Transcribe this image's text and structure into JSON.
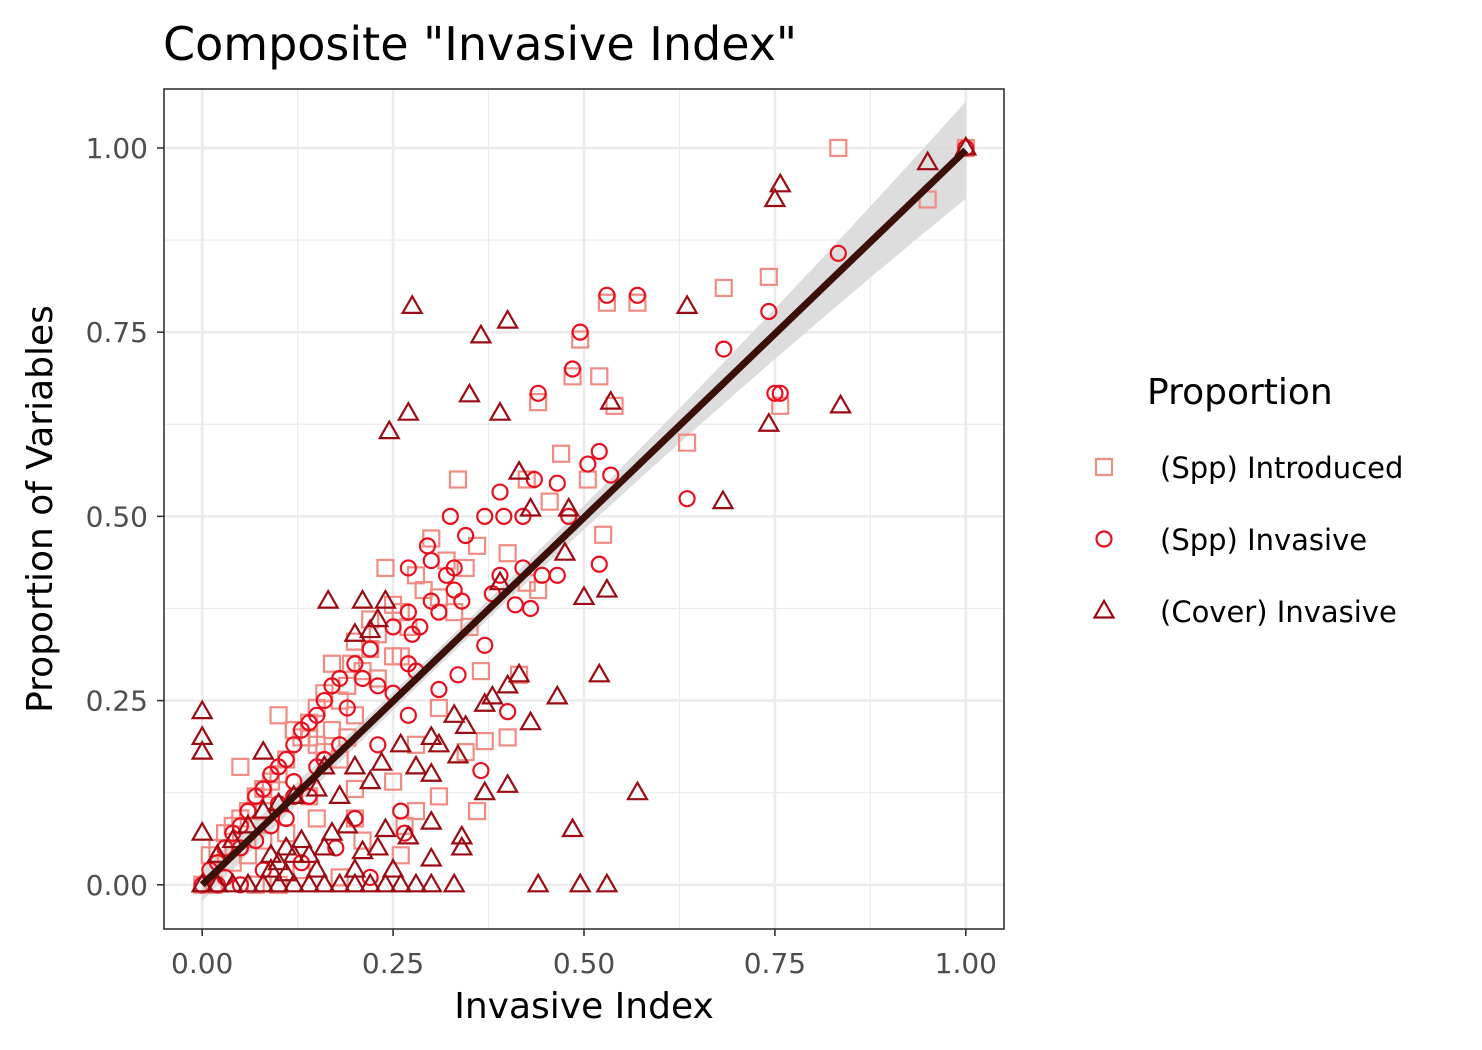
{
  "chart_data": {
    "type": "scatter",
    "title": "Composite \"Invasive Index\"",
    "xlabel": "Invasive Index",
    "ylabel": "Proportion of Variables",
    "xlim": [
      -0.05,
      1.05
    ],
    "ylim": [
      -0.06,
      1.08
    ],
    "x_ticks": [
      "0.00",
      "0.25",
      "0.50",
      "0.75",
      "1.00"
    ],
    "y_ticks": [
      "0.00",
      "0.25",
      "0.50",
      "0.75",
      "1.00"
    ],
    "x_tick_values": [
      0,
      0.25,
      0.5,
      0.75,
      1.0
    ],
    "y_tick_values": [
      0,
      0.25,
      0.5,
      0.75,
      1.0
    ],
    "grid": true,
    "legend_title": "Proportion",
    "legend_position": "right",
    "fit_line": {
      "x": [
        0,
        1
      ],
      "y": [
        0,
        0.997
      ],
      "color": "#3b1008",
      "band_color": "#d9d9d9"
    },
    "series": [
      {
        "name": "(Spp) Introduced",
        "marker": "square",
        "color": "#f08c84",
        "points": [
          [
            0.833,
            1.0
          ],
          [
            0.95,
            0.93
          ],
          [
            1.0,
            1.0
          ],
          [
            0.742,
            0.825
          ],
          [
            0.683,
            0.81
          ],
          [
            0.53,
            0.79
          ],
          [
            0.57,
            0.79
          ],
          [
            0.495,
            0.74
          ],
          [
            0.485,
            0.69
          ],
          [
            0.52,
            0.69
          ],
          [
            0.44,
            0.655
          ],
          [
            0.54,
            0.65
          ],
          [
            0.757,
            0.65
          ],
          [
            0.635,
            0.6
          ],
          [
            0.47,
            0.585
          ],
          [
            0.505,
            0.55
          ],
          [
            0.335,
            0.55
          ],
          [
            0.425,
            0.55
          ],
          [
            0.455,
            0.52
          ],
          [
            0.525,
            0.475
          ],
          [
            0.4,
            0.45
          ],
          [
            0.3,
            0.47
          ],
          [
            0.36,
            0.46
          ],
          [
            0.32,
            0.44
          ],
          [
            0.28,
            0.42
          ],
          [
            0.24,
            0.43
          ],
          [
            0.345,
            0.43
          ],
          [
            0.425,
            0.41
          ],
          [
            0.44,
            0.4
          ],
          [
            0.29,
            0.4
          ],
          [
            0.31,
            0.39
          ],
          [
            0.25,
            0.38
          ],
          [
            0.26,
            0.37
          ],
          [
            0.27,
            0.35
          ],
          [
            0.23,
            0.34
          ],
          [
            0.2,
            0.33
          ],
          [
            0.22,
            0.32
          ],
          [
            0.25,
            0.31
          ],
          [
            0.195,
            0.3
          ],
          [
            0.17,
            0.3
          ],
          [
            0.21,
            0.29
          ],
          [
            0.365,
            0.29
          ],
          [
            0.415,
            0.285
          ],
          [
            0.19,
            0.27
          ],
          [
            0.16,
            0.26
          ],
          [
            0.18,
            0.25
          ],
          [
            0.15,
            0.24
          ],
          [
            0.2,
            0.23
          ],
          [
            0.14,
            0.22
          ],
          [
            0.12,
            0.21
          ],
          [
            0.17,
            0.21
          ],
          [
            0.13,
            0.2
          ],
          [
            0.15,
            0.19
          ],
          [
            0.16,
            0.18
          ],
          [
            0.11,
            0.17
          ],
          [
            0.18,
            0.17
          ],
          [
            0.1,
            0.15
          ],
          [
            0.09,
            0.14
          ],
          [
            0.08,
            0.13
          ],
          [
            0.07,
            0.12
          ],
          [
            0.06,
            0.1
          ],
          [
            0.08,
            0.1
          ],
          [
            0.05,
            0.09
          ],
          [
            0.04,
            0.08
          ],
          [
            0.03,
            0.07
          ],
          [
            0.02,
            0.05
          ],
          [
            0.01,
            0.04
          ],
          [
            0.0,
            0.0
          ],
          [
            0.05,
            0.16
          ],
          [
            0.1,
            0.23
          ],
          [
            0.12,
            0.21
          ],
          [
            0.14,
            0.2
          ],
          [
            0.28,
            0.19
          ],
          [
            0.31,
            0.24
          ],
          [
            0.37,
            0.195
          ],
          [
            0.4,
            0.2
          ],
          [
            0.31,
            0.12
          ],
          [
            0.345,
            0.18
          ],
          [
            0.25,
            0.14
          ],
          [
            0.2,
            0.13
          ],
          [
            0.265,
            0.08
          ],
          [
            0.26,
            0.04
          ],
          [
            0.2,
            0.09
          ],
          [
            0.15,
            0.09
          ],
          [
            0.11,
            0.07
          ],
          [
            0.08,
            0.06
          ],
          [
            0.06,
            0.04
          ],
          [
            0.04,
            0.03
          ],
          [
            0.28,
            0.1
          ],
          [
            0.36,
            0.1
          ],
          [
            0.14,
            0.12
          ],
          [
            0.21,
            0.06
          ],
          [
            0.13,
            0.02
          ],
          [
            0.18,
            0.01
          ],
          [
            0.1,
            0.0
          ],
          [
            0.07,
            0.0
          ],
          [
            0.015,
            0.0
          ],
          [
            0.22,
            0.36
          ],
          [
            0.23,
            0.28
          ],
          [
            0.26,
            0.31
          ],
          [
            0.33,
            0.37
          ],
          [
            0.35,
            0.35
          ],
          [
            0.19,
            0.2
          ]
        ]
      },
      {
        "name": "(Spp) Invasive",
        "marker": "circle",
        "color": "#e8101e",
        "points": [
          [
            1.0,
            1.0
          ],
          [
            0.833,
            0.857
          ],
          [
            0.53,
            0.8
          ],
          [
            0.57,
            0.8
          ],
          [
            0.495,
            0.75
          ],
          [
            0.742,
            0.778
          ],
          [
            0.683,
            0.727
          ],
          [
            0.485,
            0.7
          ],
          [
            0.44,
            0.667
          ],
          [
            0.75,
            0.667
          ],
          [
            0.757,
            0.667
          ],
          [
            0.52,
            0.588
          ],
          [
            0.505,
            0.571
          ],
          [
            0.535,
            0.556
          ],
          [
            0.465,
            0.545
          ],
          [
            0.435,
            0.55
          ],
          [
            0.635,
            0.524
          ],
          [
            0.39,
            0.533
          ],
          [
            0.48,
            0.5
          ],
          [
            0.325,
            0.5
          ],
          [
            0.37,
            0.5
          ],
          [
            0.395,
            0.5
          ],
          [
            0.345,
            0.474
          ],
          [
            0.42,
            0.5
          ],
          [
            0.52,
            0.435
          ],
          [
            0.295,
            0.46
          ],
          [
            0.3,
            0.44
          ],
          [
            0.27,
            0.43
          ],
          [
            0.33,
            0.43
          ],
          [
            0.39,
            0.42
          ],
          [
            0.42,
            0.43
          ],
          [
            0.445,
            0.42
          ],
          [
            0.465,
            0.42
          ],
          [
            0.41,
            0.38
          ],
          [
            0.43,
            0.375
          ],
          [
            0.33,
            0.4
          ],
          [
            0.34,
            0.385
          ],
          [
            0.3,
            0.385
          ],
          [
            0.31,
            0.37
          ],
          [
            0.285,
            0.35
          ],
          [
            0.275,
            0.34
          ],
          [
            0.25,
            0.35
          ],
          [
            0.27,
            0.3
          ],
          [
            0.22,
            0.32
          ],
          [
            0.2,
            0.3
          ],
          [
            0.21,
            0.28
          ],
          [
            0.23,
            0.27
          ],
          [
            0.18,
            0.28
          ],
          [
            0.17,
            0.27
          ],
          [
            0.16,
            0.25
          ],
          [
            0.19,
            0.24
          ],
          [
            0.15,
            0.23
          ],
          [
            0.14,
            0.22
          ],
          [
            0.13,
            0.21
          ],
          [
            0.12,
            0.19
          ],
          [
            0.11,
            0.17
          ],
          [
            0.1,
            0.16
          ],
          [
            0.09,
            0.15
          ],
          [
            0.08,
            0.13
          ],
          [
            0.07,
            0.12
          ],
          [
            0.06,
            0.1
          ],
          [
            0.05,
            0.08
          ],
          [
            0.04,
            0.07
          ],
          [
            0.03,
            0.05
          ],
          [
            0.02,
            0.03
          ],
          [
            0.01,
            0.02
          ],
          [
            0.0,
            0.0
          ],
          [
            0.37,
            0.325
          ],
          [
            0.335,
            0.285
          ],
          [
            0.31,
            0.265
          ],
          [
            0.4,
            0.235
          ],
          [
            0.365,
            0.155
          ],
          [
            0.27,
            0.23
          ],
          [
            0.23,
            0.19
          ],
          [
            0.18,
            0.19
          ],
          [
            0.16,
            0.17
          ],
          [
            0.15,
            0.16
          ],
          [
            0.12,
            0.14
          ],
          [
            0.14,
            0.12
          ],
          [
            0.11,
            0.09
          ],
          [
            0.09,
            0.08
          ],
          [
            0.07,
            0.06
          ],
          [
            0.05,
            0.05
          ],
          [
            0.03,
            0.01
          ],
          [
            0.02,
            0.0
          ],
          [
            0.05,
            0.0
          ],
          [
            0.26,
            0.1
          ],
          [
            0.265,
            0.07
          ],
          [
            0.2,
            0.09
          ],
          [
            0.22,
            0.01
          ],
          [
            0.175,
            0.05
          ],
          [
            0.13,
            0.03
          ],
          [
            0.08,
            0.02
          ],
          [
            0.12,
            0.12
          ],
          [
            0.1,
            0.11
          ],
          [
            0.25,
            0.26
          ],
          [
            0.28,
            0.29
          ],
          [
            0.32,
            0.42
          ],
          [
            0.27,
            0.37
          ],
          [
            0.38,
            0.395
          ]
        ]
      },
      {
        "name": "(Cover) Invasive",
        "marker": "triangle",
        "color": "#9b0b14",
        "points": [
          [
            1.0,
            1.0
          ],
          [
            0.95,
            0.98
          ],
          [
            0.757,
            0.95
          ],
          [
            0.75,
            0.93
          ],
          [
            0.275,
            0.785
          ],
          [
            0.635,
            0.785
          ],
          [
            0.4,
            0.765
          ],
          [
            0.365,
            0.745
          ],
          [
            0.35,
            0.665
          ],
          [
            0.535,
            0.655
          ],
          [
            0.836,
            0.65
          ],
          [
            0.27,
            0.64
          ],
          [
            0.39,
            0.64
          ],
          [
            0.742,
            0.625
          ],
          [
            0.245,
            0.615
          ],
          [
            0.415,
            0.56
          ],
          [
            0.43,
            0.51
          ],
          [
            0.48,
            0.51
          ],
          [
            0.682,
            0.52
          ],
          [
            0.475,
            0.45
          ],
          [
            0.39,
            0.41
          ],
          [
            0.53,
            0.4
          ],
          [
            0.5,
            0.39
          ],
          [
            0.165,
            0.385
          ],
          [
            0.21,
            0.385
          ],
          [
            0.24,
            0.385
          ],
          [
            0.23,
            0.36
          ],
          [
            0.2,
            0.34
          ],
          [
            0.22,
            0.345
          ],
          [
            0.52,
            0.285
          ],
          [
            0.415,
            0.285
          ],
          [
            0.38,
            0.255
          ],
          [
            0.4,
            0.27
          ],
          [
            0.465,
            0.255
          ],
          [
            0.43,
            0.22
          ],
          [
            0.37,
            0.245
          ],
          [
            0.33,
            0.23
          ],
          [
            0.345,
            0.215
          ],
          [
            0.0,
            0.235
          ],
          [
            0.0,
            0.2
          ],
          [
            0.0,
            0.18
          ],
          [
            0.08,
            0.18
          ],
          [
            0.335,
            0.175
          ],
          [
            0.31,
            0.19
          ],
          [
            0.3,
            0.2
          ],
          [
            0.26,
            0.19
          ],
          [
            0.28,
            0.16
          ],
          [
            0.235,
            0.165
          ],
          [
            0.3,
            0.15
          ],
          [
            0.22,
            0.14
          ],
          [
            0.2,
            0.16
          ],
          [
            0.18,
            0.12
          ],
          [
            0.16,
            0.16
          ],
          [
            0.4,
            0.135
          ],
          [
            0.37,
            0.125
          ],
          [
            0.57,
            0.125
          ],
          [
            0.15,
            0.13
          ],
          [
            0.12,
            0.12
          ],
          [
            0.1,
            0.11
          ],
          [
            0.08,
            0.1
          ],
          [
            0.06,
            0.08
          ],
          [
            0.04,
            0.06
          ],
          [
            0.02,
            0.04
          ],
          [
            0.0,
            0.07
          ],
          [
            0.3,
            0.085
          ],
          [
            0.24,
            0.075
          ],
          [
            0.485,
            0.075
          ],
          [
            0.27,
            0.065
          ],
          [
            0.34,
            0.065
          ],
          [
            0.34,
            0.05
          ],
          [
            0.23,
            0.05
          ],
          [
            0.21,
            0.045
          ],
          [
            0.16,
            0.05
          ],
          [
            0.14,
            0.04
          ],
          [
            0.12,
            0.04
          ],
          [
            0.1,
            0.03
          ],
          [
            0.09,
            0.02
          ],
          [
            0.3,
            0.035
          ],
          [
            0.25,
            0.02
          ],
          [
            0.2,
            0.02
          ],
          [
            0.15,
            0.02
          ],
          [
            0.11,
            0.015
          ],
          [
            0.0,
            0.0
          ],
          [
            0.02,
            0.0
          ],
          [
            0.04,
            0.0
          ],
          [
            0.06,
            0.0
          ],
          [
            0.08,
            0.0
          ],
          [
            0.1,
            0.0
          ],
          [
            0.12,
            0.0
          ],
          [
            0.14,
            0.0
          ],
          [
            0.16,
            0.0
          ],
          [
            0.18,
            0.0
          ],
          [
            0.2,
            0.0
          ],
          [
            0.22,
            0.0
          ],
          [
            0.24,
            0.0
          ],
          [
            0.26,
            0.0
          ],
          [
            0.28,
            0.0
          ],
          [
            0.3,
            0.0
          ],
          [
            0.33,
            0.0
          ],
          [
            0.44,
            0.0
          ],
          [
            0.495,
            0.0
          ],
          [
            0.53,
            0.0
          ],
          [
            0.19,
            0.08
          ],
          [
            0.17,
            0.07
          ],
          [
            0.13,
            0.06
          ],
          [
            0.11,
            0.05
          ],
          [
            0.09,
            0.04
          ]
        ]
      }
    ]
  }
}
